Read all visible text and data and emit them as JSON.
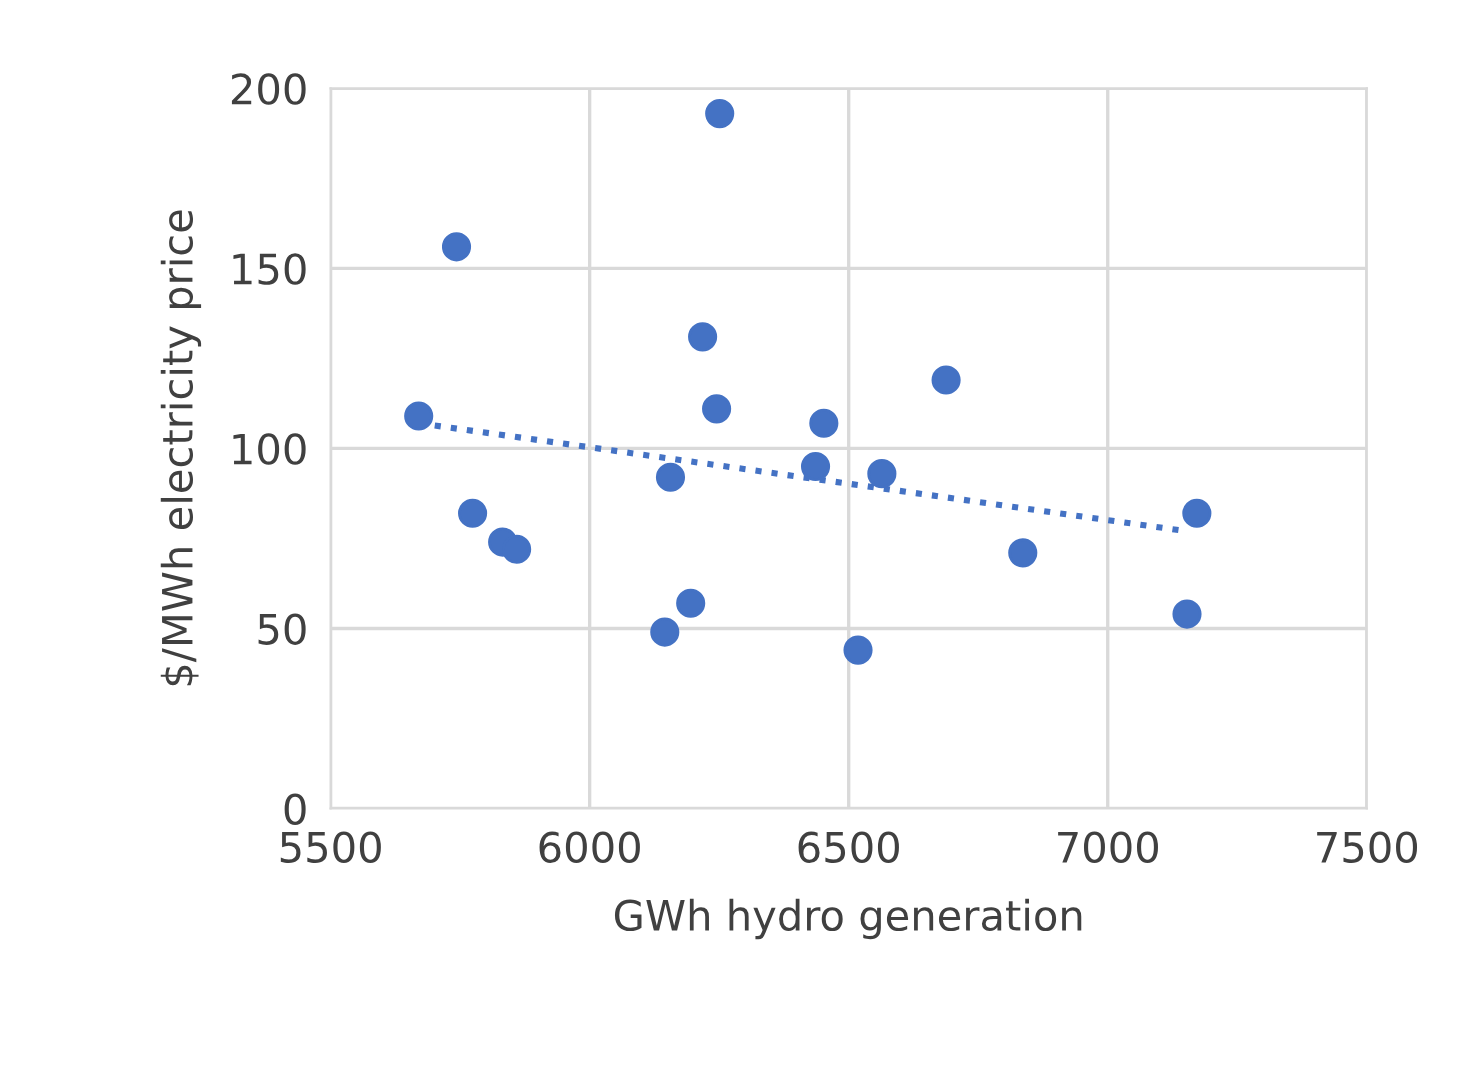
{
  "chart_data": {
    "type": "scatter",
    "xlabel": "GWh hydro generation",
    "ylabel": "$/MWh electricity price",
    "xlim": [
      5500,
      7500
    ],
    "xticks": [
      5500,
      6000,
      6500,
      7000,
      7500
    ],
    "ylim": [
      0,
      200
    ],
    "yticks": [
      0,
      50,
      100,
      150,
      200
    ],
    "grid": true,
    "series": [
      {
        "marker": "circle",
        "color": "#4472c4",
        "x": [
          5670,
          5743,
          5774,
          5832,
          5859,
          6156,
          6145,
          6195,
          6218,
          6245,
          6251,
          6436,
          6452,
          6518,
          6564,
          6688,
          6836,
          7153,
          7172
        ],
        "values": [
          109,
          156,
          82,
          74,
          72,
          92,
          49,
          57,
          131,
          111,
          193,
          95,
          107,
          44,
          93,
          119,
          71,
          54,
          82
        ]
      },
      {
        "type": "line",
        "color": "#4472c4",
        "line_style": "dotted",
        "x": [
          5670,
          7153
        ],
        "values": [
          107,
          77
        ]
      }
    ]
  }
}
